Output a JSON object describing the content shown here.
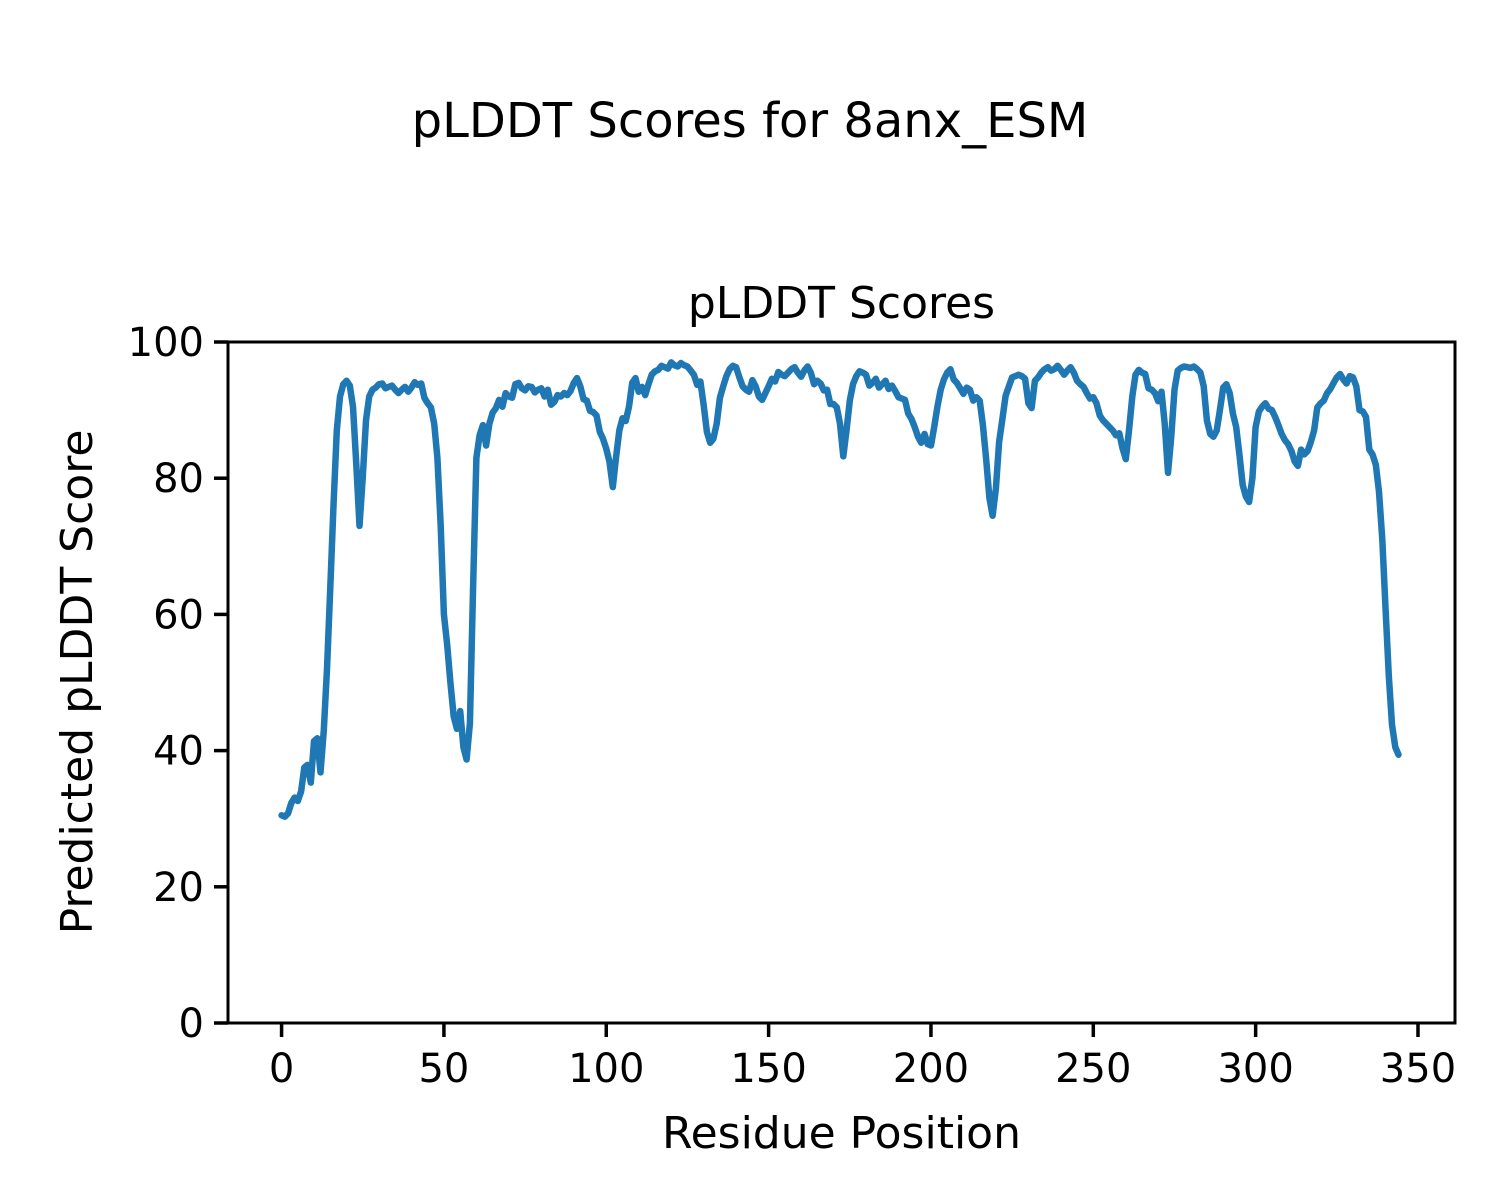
{
  "figure_title": "pLDDT Scores for 8anx_ESM",
  "chart_data": {
    "type": "line",
    "title": "pLDDT Scores",
    "xlabel": "Residue Position",
    "ylabel": "Predicted pLDDT Score",
    "legend": null,
    "grid": false,
    "line_color": "#1f77b4",
    "xlim": [
      -16.5,
      361.4
    ],
    "ylim": [
      0,
      100
    ],
    "x_ticks": [
      0,
      50,
      100,
      150,
      200,
      250,
      300,
      350
    ],
    "y_ticks": [
      0,
      20,
      40,
      60,
      80,
      100
    ],
    "x_start": 0,
    "x_step": 1,
    "values": [
      30.5,
      30.3,
      30.8,
      32.3,
      33.1,
      32.6,
      34.0,
      37.5,
      37.9,
      35.3,
      41.4,
      41.8,
      36.8,
      43.0,
      52.0,
      64.0,
      76.0,
      87.0,
      92.0,
      93.8,
      94.3,
      93.6,
      90.5,
      82.0,
      73.0,
      80.0,
      88.5,
      92.0,
      93.0,
      93.3,
      93.8,
      93.9,
      93.2,
      93.4,
      93.6,
      93.0,
      92.5,
      93.0,
      93.4,
      92.7,
      93.3,
      94.1,
      93.7,
      93.9,
      91.8,
      91.0,
      90.4,
      88.0,
      83.0,
      73.0,
      60.0,
      55.5,
      50.0,
      45.0,
      43.2,
      45.8,
      40.5,
      38.7,
      44.0,
      64.0,
      83.0,
      86.3,
      87.8,
      84.8,
      88.0,
      89.6,
      90.3,
      91.5,
      90.5,
      92.5,
      92.0,
      91.8,
      93.8,
      94.0,
      93.2,
      92.9,
      93.5,
      93.4,
      92.6,
      93.0,
      93.2,
      92.0,
      93.0,
      90.8,
      91.2,
      92.2,
      92.0,
      92.5,
      92.2,
      92.8,
      94.0,
      94.7,
      93.5,
      91.6,
      91.4,
      89.9,
      89.7,
      89.2,
      86.8,
      85.8,
      84.3,
      82.4,
      78.7,
      83.0,
      87.0,
      88.8,
      88.4,
      90.5,
      94.0,
      94.7,
      92.7,
      93.4,
      92.2,
      93.8,
      95.2,
      95.7,
      95.9,
      96.5,
      96.3,
      96.1,
      97.0,
      96.6,
      96.4,
      96.9,
      96.6,
      96.4,
      95.8,
      95.2,
      93.7,
      94.2,
      90.7,
      86.8,
      85.2,
      85.8,
      88.0,
      91.8,
      93.5,
      95.0,
      96.0,
      96.5,
      96.3,
      94.8,
      93.5,
      93.0,
      92.7,
      94.4,
      93.5,
      92.0,
      91.5,
      92.5,
      93.5,
      94.6,
      94.2,
      95.6,
      95.2,
      95.0,
      95.5,
      96.0,
      96.3,
      95.5,
      94.9,
      95.8,
      96.4,
      95.5,
      93.8,
      94.3,
      93.9,
      92.9,
      93.0,
      90.9,
      90.9,
      90.4,
      88.0,
      83.2,
      87.0,
      91.4,
      93.8,
      95.0,
      95.7,
      95.5,
      95.2,
      93.6,
      94.0,
      94.6,
      93.3,
      93.8,
      94.3,
      93.1,
      93.6,
      92.8,
      91.9,
      91.7,
      91.5,
      89.5,
      88.7,
      87.5,
      86.1,
      85.2,
      86.5,
      85.0,
      84.8,
      87.5,
      90.5,
      93.0,
      94.5,
      95.5,
      96.0,
      94.5,
      94.0,
      93.2,
      92.4,
      93.3,
      93.0,
      91.4,
      91.9,
      91.4,
      87.8,
      82.9,
      77.1,
      74.5,
      78.5,
      85.3,
      88.7,
      92.1,
      93.5,
      94.8,
      95.0,
      95.2,
      95.0,
      94.6,
      91.0,
      90.3,
      94.3,
      94.8,
      95.5,
      96.0,
      96.3,
      95.8,
      96.0,
      96.5,
      95.9,
      95.2,
      95.8,
      96.3,
      95.5,
      94.3,
      93.8,
      93.4,
      92.5,
      91.7,
      91.9,
      91.0,
      89.2,
      88.5,
      88.0,
      87.5,
      87.0,
      86.3,
      86.6,
      84.4,
      82.8,
      87.0,
      92.0,
      95.2,
      95.9,
      95.5,
      95.3,
      93.2,
      93.0,
      92.5,
      91.3,
      92.7,
      88.0,
      80.8,
      86.0,
      93.0,
      95.8,
      96.2,
      96.4,
      96.3,
      96.2,
      96.4,
      96.0,
      95.5,
      93.5,
      88.5,
      86.5,
      86.1,
      87.0,
      90.0,
      93.3,
      93.8,
      92.5,
      89.5,
      87.5,
      83.5,
      79.0,
      77.3,
      76.5,
      80.0,
      87.5,
      89.8,
      90.5,
      91.0,
      90.2,
      90.0,
      89.0,
      87.8,
      86.5,
      85.6,
      85.0,
      84.0,
      82.5,
      81.8,
      84.2,
      83.5,
      84.0,
      85.3,
      87.0,
      90.4,
      91.0,
      91.4,
      92.5,
      93.1,
      94.0,
      94.8,
      95.3,
      94.5,
      93.9,
      95.0,
      94.8,
      93.5,
      90.0,
      89.8,
      89.0,
      84.2,
      83.5,
      82.0,
      78.0,
      71.0,
      61.0,
      51.0,
      43.8,
      40.5,
      39.4
    ]
  }
}
